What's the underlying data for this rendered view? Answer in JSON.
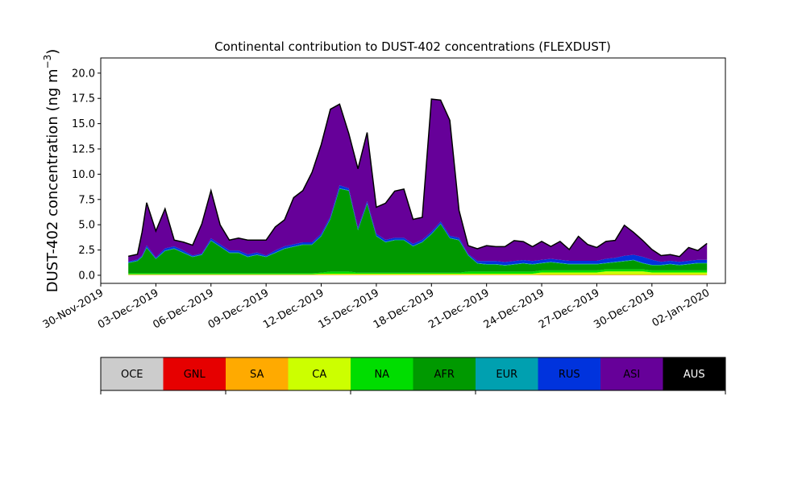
{
  "chart_data": {
    "type": "area",
    "stacked": true,
    "title": "Continental contribution to DUST-402 concentrations (FLEXDUST)",
    "ylabel": "DUST-402 concentration (ng m",
    "ylabel_exp": "−3",
    "ylabel_close": ")",
    "xlim": [
      "2019-11-30",
      "2020-01-03"
    ],
    "ylim": [
      -0.8,
      21.5
    ],
    "yticks": [
      0.0,
      2.5,
      5.0,
      7.5,
      10.0,
      12.5,
      15.0,
      17.5,
      20.0
    ],
    "ytick_labels": [
      "0.0",
      "2.5",
      "5.0",
      "7.5",
      "10.0",
      "12.5",
      "15.0",
      "17.5",
      "20.0"
    ],
    "xticks": [
      "2019-11-30",
      "2019-12-03",
      "2019-12-06",
      "2019-12-09",
      "2019-12-12",
      "2019-12-15",
      "2019-12-18",
      "2019-12-21",
      "2019-12-24",
      "2019-12-27",
      "2019-12-30",
      "2020-01-02"
    ],
    "xtick_labels": [
      "30-Nov-2019",
      "03-Dec-2019",
      "06-Dec-2019",
      "09-Dec-2019",
      "12-Dec-2019",
      "15-Dec-2019",
      "18-Dec-2019",
      "21-Dec-2019",
      "24-Dec-2019",
      "27-Dec-2019",
      "30-Dec-2019",
      "02-Jan-2020"
    ],
    "x": [
      "2019-12-01 12:00",
      "2019-12-02 00:00",
      "2019-12-02 06:00",
      "2019-12-02 12:00",
      "2019-12-03 00:00",
      "2019-12-03 12:00",
      "2019-12-04 00:00",
      "2019-12-04 12:00",
      "2019-12-05 00:00",
      "2019-12-05 12:00",
      "2019-12-06 00:00",
      "2019-12-06 12:00",
      "2019-12-07 00:00",
      "2019-12-07 12:00",
      "2019-12-08 00:00",
      "2019-12-08 12:00",
      "2019-12-09 00:00",
      "2019-12-09 12:00",
      "2019-12-10 00:00",
      "2019-12-10 12:00",
      "2019-12-11 00:00",
      "2019-12-11 12:00",
      "2019-12-12 00:00",
      "2019-12-12 12:00",
      "2019-12-13 00:00",
      "2019-12-13 12:00",
      "2019-12-14 00:00",
      "2019-12-14 12:00",
      "2019-12-15 00:00",
      "2019-12-15 12:00",
      "2019-12-16 00:00",
      "2019-12-16 12:00",
      "2019-12-17 00:00",
      "2019-12-17 12:00",
      "2019-12-18 00:00",
      "2019-12-18 12:00",
      "2019-12-19 00:00",
      "2019-12-19 12:00",
      "2019-12-20 00:00",
      "2019-12-20 12:00",
      "2019-12-21 00:00",
      "2019-12-21 12:00",
      "2019-12-22 00:00",
      "2019-12-22 12:00",
      "2019-12-23 00:00",
      "2019-12-23 12:00",
      "2019-12-24 00:00",
      "2019-12-24 12:00",
      "2019-12-25 00:00",
      "2019-12-25 12:00",
      "2019-12-26 00:00",
      "2019-12-26 12:00",
      "2019-12-27 00:00",
      "2019-12-27 12:00",
      "2019-12-28 00:00",
      "2019-12-28 12:00",
      "2019-12-29 00:00",
      "2019-12-29 12:00",
      "2019-12-30 00:00",
      "2019-12-30 12:00",
      "2019-12-31 00:00",
      "2019-12-31 12:00",
      "2020-01-01 00:00",
      "2020-01-01 12:00",
      "2020-01-02 00:00"
    ],
    "series": [
      {
        "name": "OCE",
        "color": "#cccccc",
        "values": [
          0.02,
          0.02,
          0.02,
          0.02,
          0.02,
          0.02,
          0.02,
          0.02,
          0.02,
          0.02,
          0.02,
          0.02,
          0.02,
          0.02,
          0.02,
          0.02,
          0.02,
          0.02,
          0.02,
          0.02,
          0.02,
          0.02,
          0.02,
          0.02,
          0.02,
          0.02,
          0.02,
          0.02,
          0.02,
          0.02,
          0.02,
          0.02,
          0.02,
          0.02,
          0.02,
          0.02,
          0.02,
          0.02,
          0.02,
          0.02,
          0.02,
          0.02,
          0.02,
          0.02,
          0.02,
          0.02,
          0.02,
          0.02,
          0.02,
          0.02,
          0.02,
          0.02,
          0.02,
          0.02,
          0.02,
          0.02,
          0.02,
          0.02,
          0.02,
          0.02,
          0.02,
          0.02,
          0.02,
          0.02,
          0.02
        ]
      },
      {
        "name": "GNL",
        "color": "#e60000",
        "values": [
          0.01,
          0.01,
          0.01,
          0.01,
          0.01,
          0.01,
          0.01,
          0.01,
          0.01,
          0.01,
          0.01,
          0.01,
          0.01,
          0.01,
          0.01,
          0.01,
          0.01,
          0.01,
          0.01,
          0.01,
          0.01,
          0.01,
          0.01,
          0.01,
          0.01,
          0.01,
          0.01,
          0.01,
          0.01,
          0.01,
          0.01,
          0.01,
          0.01,
          0.01,
          0.01,
          0.01,
          0.01,
          0.01,
          0.01,
          0.01,
          0.01,
          0.01,
          0.01,
          0.01,
          0.01,
          0.01,
          0.01,
          0.01,
          0.01,
          0.01,
          0.01,
          0.01,
          0.01,
          0.01,
          0.01,
          0.01,
          0.01,
          0.01,
          0.01,
          0.01,
          0.01,
          0.01,
          0.01,
          0.01,
          0.01
        ]
      },
      {
        "name": "SA",
        "color": "#ffaa00",
        "values": [
          0.03,
          0.03,
          0.03,
          0.03,
          0.03,
          0.03,
          0.03,
          0.03,
          0.03,
          0.03,
          0.03,
          0.03,
          0.03,
          0.03,
          0.03,
          0.03,
          0.03,
          0.03,
          0.03,
          0.03,
          0.03,
          0.03,
          0.03,
          0.03,
          0.03,
          0.03,
          0.03,
          0.03,
          0.03,
          0.03,
          0.03,
          0.03,
          0.03,
          0.03,
          0.03,
          0.03,
          0.03,
          0.03,
          0.03,
          0.03,
          0.03,
          0.03,
          0.03,
          0.03,
          0.03,
          0.03,
          0.05,
          0.05,
          0.05,
          0.05,
          0.05,
          0.05,
          0.05,
          0.05,
          0.05,
          0.05,
          0.05,
          0.05,
          0.05,
          0.05,
          0.05,
          0.05,
          0.05,
          0.05,
          0.05
        ]
      },
      {
        "name": "CA",
        "color": "#ccff00",
        "values": [
          0.05,
          0.05,
          0.05,
          0.05,
          0.05,
          0.05,
          0.05,
          0.05,
          0.05,
          0.05,
          0.05,
          0.05,
          0.05,
          0.05,
          0.05,
          0.05,
          0.05,
          0.05,
          0.05,
          0.05,
          0.05,
          0.05,
          0.1,
          0.1,
          0.1,
          0.1,
          0.1,
          0.1,
          0.1,
          0.1,
          0.1,
          0.1,
          0.1,
          0.1,
          0.1,
          0.1,
          0.1,
          0.1,
          0.1,
          0.1,
          0.1,
          0.1,
          0.1,
          0.1,
          0.1,
          0.1,
          0.2,
          0.2,
          0.2,
          0.2,
          0.2,
          0.2,
          0.2,
          0.3,
          0.3,
          0.3,
          0.3,
          0.3,
          0.2,
          0.2,
          0.2,
          0.2,
          0.2,
          0.2,
          0.2
        ]
      },
      {
        "name": "NA",
        "color": "#00dd00",
        "values": [
          0.1,
          0.1,
          0.1,
          0.1,
          0.1,
          0.1,
          0.1,
          0.1,
          0.1,
          0.1,
          0.1,
          0.1,
          0.1,
          0.1,
          0.1,
          0.1,
          0.1,
          0.1,
          0.1,
          0.1,
          0.1,
          0.1,
          0.1,
          0.2,
          0.2,
          0.2,
          0.1,
          0.1,
          0.1,
          0.1,
          0.1,
          0.1,
          0.1,
          0.1,
          0.1,
          0.1,
          0.1,
          0.1,
          0.2,
          0.2,
          0.2,
          0.2,
          0.2,
          0.2,
          0.2,
          0.2,
          0.2,
          0.2,
          0.2,
          0.2,
          0.2,
          0.2,
          0.2,
          0.2,
          0.2,
          0.2,
          0.2,
          0.2,
          0.2,
          0.2,
          0.2,
          0.2,
          0.2,
          0.2,
          0.2
        ]
      },
      {
        "name": "AFR",
        "color": "#009900",
        "values": [
          1.0,
          1.2,
          1.6,
          2.5,
          1.4,
          2.2,
          2.4,
          2.0,
          1.6,
          1.8,
          3.2,
          2.6,
          2.0,
          2.0,
          1.6,
          1.8,
          1.6,
          2.0,
          2.4,
          2.6,
          2.8,
          2.8,
          3.6,
          5.2,
          8.2,
          8.0,
          4.2,
          6.8,
          3.6,
          3.0,
          3.2,
          3.2,
          2.6,
          3.0,
          3.8,
          4.8,
          3.4,
          3.2,
          1.6,
          0.8,
          0.7,
          0.7,
          0.6,
          0.7,
          0.8,
          0.7,
          0.7,
          0.8,
          0.7,
          0.6,
          0.6,
          0.6,
          0.6,
          0.6,
          0.7,
          0.8,
          0.9,
          0.6,
          0.5,
          0.5,
          0.6,
          0.5,
          0.6,
          0.7,
          0.7
        ]
      },
      {
        "name": "EUR",
        "color": "#00a0b0",
        "values": [
          0.05,
          0.05,
          0.05,
          0.05,
          0.05,
          0.05,
          0.05,
          0.05,
          0.05,
          0.05,
          0.05,
          0.05,
          0.05,
          0.05,
          0.05,
          0.05,
          0.05,
          0.05,
          0.05,
          0.05,
          0.05,
          0.05,
          0.05,
          0.05,
          0.05,
          0.05,
          0.05,
          0.05,
          0.05,
          0.05,
          0.05,
          0.05,
          0.05,
          0.05,
          0.05,
          0.05,
          0.05,
          0.05,
          0.05,
          0.05,
          0.05,
          0.05,
          0.05,
          0.05,
          0.05,
          0.05,
          0.05,
          0.05,
          0.05,
          0.05,
          0.05,
          0.05,
          0.05,
          0.05,
          0.05,
          0.05,
          0.05,
          0.05,
          0.05,
          0.05,
          0.05,
          0.05,
          0.05,
          0.05,
          0.05
        ]
      },
      {
        "name": "RUS",
        "color": "#0033dd",
        "values": [
          0.1,
          0.1,
          0.1,
          0.2,
          0.1,
          0.2,
          0.2,
          0.2,
          0.1,
          0.1,
          0.2,
          0.2,
          0.2,
          0.2,
          0.2,
          0.2,
          0.1,
          0.2,
          0.2,
          0.2,
          0.2,
          0.2,
          0.2,
          0.2,
          0.3,
          0.2,
          0.2,
          0.2,
          0.2,
          0.2,
          0.2,
          0.2,
          0.2,
          0.2,
          0.2,
          0.2,
          0.2,
          0.2,
          0.1,
          0.2,
          0.3,
          0.3,
          0.3,
          0.3,
          0.3,
          0.3,
          0.3,
          0.3,
          0.3,
          0.3,
          0.3,
          0.3,
          0.3,
          0.4,
          0.4,
          0.5,
          0.5,
          0.6,
          0.5,
          0.3,
          0.3,
          0.3,
          0.3,
          0.3,
          0.3
        ]
      },
      {
        "name": "ASI",
        "color": "#660099",
        "values": [
          0.5,
          0.5,
          2.3,
          4.2,
          2.6,
          3.9,
          0.6,
          0.8,
          1.0,
          2.9,
          4.7,
          1.9,
          1.0,
          1.2,
          1.4,
          1.2,
          1.5,
          2.3,
          2.6,
          4.6,
          5.1,
          6.9,
          8.8,
          10.6,
          8.0,
          5.4,
          5.8,
          6.8,
          2.6,
          3.6,
          4.6,
          4.8,
          2.4,
          2.2,
          13.1,
          12.0,
          11.4,
          2.7,
          0.8,
          1.2,
          1.5,
          1.4,
          1.5,
          2.0,
          1.8,
          1.4,
          1.8,
          1.2,
          1.8,
          1.1,
          2.4,
          1.6,
          1.3,
          1.7,
          1.7,
          3.0,
          2.2,
          1.6,
          1.0,
          0.6,
          0.6,
          0.5,
          1.3,
          0.9,
          1.6
        ]
      },
      {
        "name": "AUS",
        "color": "#000000",
        "values": [
          0.02,
          0.02,
          0.02,
          0.02,
          0.02,
          0.02,
          0.02,
          0.02,
          0.02,
          0.02,
          0.02,
          0.02,
          0.02,
          0.02,
          0.02,
          0.02,
          0.02,
          0.02,
          0.02,
          0.02,
          0.02,
          0.02,
          0.02,
          0.02,
          0.02,
          0.02,
          0.02,
          0.02,
          0.02,
          0.02,
          0.02,
          0.02,
          0.02,
          0.02,
          0.02,
          0.02,
          0.02,
          0.02,
          0.02,
          0.02,
          0.02,
          0.02,
          0.02,
          0.02,
          0.02,
          0.02,
          0.02,
          0.02,
          0.02,
          0.02,
          0.02,
          0.02,
          0.02,
          0.02,
          0.02,
          0.02,
          0.02,
          0.02,
          0.02,
          0.02,
          0.02,
          0.02,
          0.02,
          0.02,
          0.02
        ]
      }
    ],
    "legend": {
      "placement": "bottom",
      "entries": [
        "OCE",
        "GNL",
        "SA",
        "CA",
        "NA",
        "AFR",
        "EUR",
        "RUS",
        "ASI",
        "AUS"
      ],
      "label_colors": [
        "#000000",
        "#000000",
        "#000000",
        "#000000",
        "#000000",
        "#000000",
        "#000000",
        "#000000",
        "#000000",
        "#ffffff"
      ]
    },
    "grid": false
  }
}
